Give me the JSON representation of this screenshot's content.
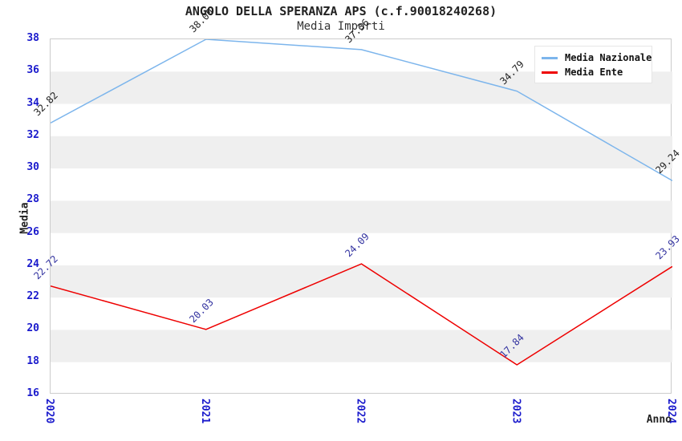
{
  "header": {
    "title": "ANGOLO DELLA SPERANZA APS (c.f.90018240268)",
    "subtitle": "Media Importi"
  },
  "axes": {
    "y_label": "Media",
    "x_label": "Anno",
    "y_ticks": [
      16,
      18,
      20,
      22,
      24,
      26,
      28,
      30,
      32,
      34,
      36,
      38
    ],
    "x_ticks": [
      "2020",
      "2021",
      "2022",
      "2023",
      "2024"
    ]
  },
  "legend": {
    "items": [
      {
        "label": "Media Nazionale",
        "color": "#7cb5ec"
      },
      {
        "label": "Media Ente",
        "color": "#ee0000"
      }
    ]
  },
  "colors": {
    "band_fill": "#efefef",
    "plot_border": "#cccccc",
    "tick_text": "#1a1acc",
    "nazionale_line": "#7cb5ec",
    "ente_line": "#ee0000",
    "nazionale_label_text": "#222222",
    "ente_label_text": "#3333a0"
  },
  "chart_data": {
    "type": "line",
    "title": "ANGOLO DELLA SPERANZA APS (c.f.90018240268)",
    "subtitle": "Media Importi",
    "xlabel": "Anno",
    "ylabel": "Media",
    "categories": [
      "2020",
      "2021",
      "2022",
      "2023",
      "2024"
    ],
    "series": [
      {
        "name": "Media Nazionale",
        "color": "#7cb5ec",
        "label_color": "#222222",
        "values": [
          32.82,
          38.0,
          37.36,
          34.79,
          29.24
        ]
      },
      {
        "name": "Media Ente",
        "color": "#ee0000",
        "label_color": "#3333a0",
        "values": [
          22.72,
          20.03,
          24.09,
          17.84,
          23.93
        ]
      }
    ],
    "ylim": [
      16,
      38
    ],
    "ytick_step": 2,
    "grid": "alternating-horizontal-bands",
    "band_color": "#efefef",
    "legend_position": "top-right",
    "data_label_rotation_deg": -45,
    "data_label_format": "0.00"
  }
}
